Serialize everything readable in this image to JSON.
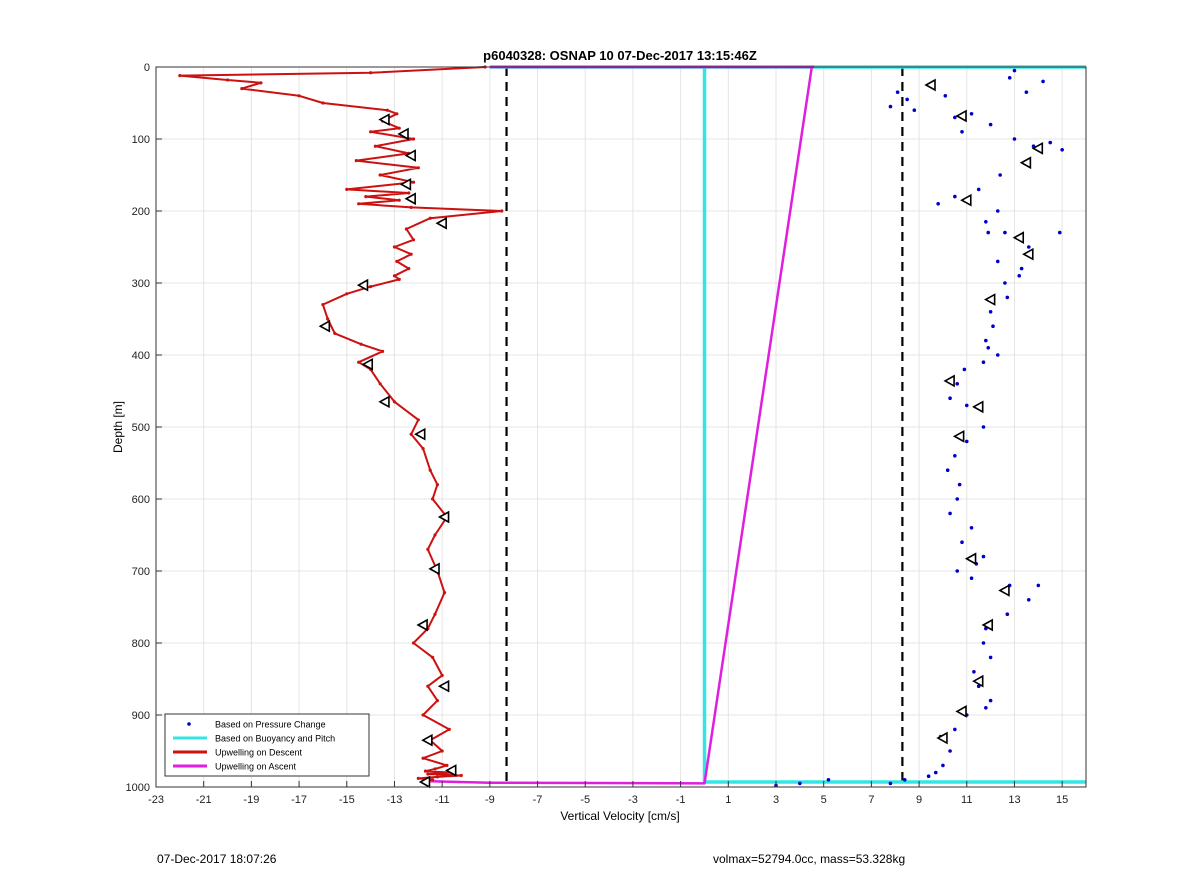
{
  "chart_data": {
    "type": "scatter",
    "title": "p6040328: OSNAP 10 07-Dec-2017 13:15:46Z",
    "xlabel": "Vertical Velocity [cm/s]",
    "ylabel": "Depth [m]",
    "xlim": [
      -23,
      16
    ],
    "ylim": [
      0,
      1000
    ],
    "y_reversed": true,
    "grid": true,
    "xticks": [
      -23,
      -21,
      -19,
      -17,
      -15,
      -13,
      -11,
      -9,
      -7,
      -5,
      -3,
      -1,
      1,
      3,
      5,
      7,
      9,
      11,
      13,
      15
    ],
    "yticks": [
      0,
      100,
      200,
      300,
      400,
      500,
      600,
      700,
      800,
      900,
      1000
    ],
    "legend_position": "bottom-left",
    "threshold_lines": [
      -8.3,
      8.3
    ],
    "series": [
      {
        "name": "Based on Pressure Change",
        "mark": "dots",
        "color": "#0000cc",
        "x": [
          13.0,
          12.8,
          14.2,
          13.5,
          8.1,
          8.5,
          7.8,
          8.8,
          10.1,
          10.5,
          11.2,
          10.8,
          12.0,
          13.0,
          13.8,
          14.5,
          15.0,
          13.6,
          12.4,
          11.5,
          10.5,
          9.8,
          12.3,
          11.8,
          11.9,
          12.6,
          13.6,
          14.9,
          12.3,
          13.3,
          12.6,
          13.2,
          12.7,
          12.0,
          12.1,
          11.8,
          12.3,
          11.7,
          11.9,
          10.9,
          10.6,
          10.3,
          11.0,
          11.7,
          11.0,
          10.5,
          10.2,
          10.7,
          10.6,
          10.3,
          11.2,
          10.8,
          11.7,
          11.4,
          10.6,
          11.2,
          12.8,
          13.6,
          14.0,
          12.7,
          11.8,
          11.7,
          12.0,
          11.3,
          11.5,
          12.0,
          11.8,
          11.0,
          10.5,
          9.9,
          10.3,
          10.0,
          9.7,
          9.4,
          4.0,
          5.2,
          7.8,
          8.4,
          3.0
        ],
        "y": [
          5,
          15,
          20,
          35,
          35,
          45,
          55,
          60,
          40,
          70,
          65,
          90,
          80,
          100,
          110,
          105,
          115,
          130,
          150,
          170,
          180,
          190,
          200,
          215,
          230,
          230,
          250,
          230,
          270,
          280,
          300,
          290,
          320,
          340,
          360,
          380,
          400,
          410,
          390,
          420,
          440,
          460,
          470,
          500,
          520,
          540,
          560,
          580,
          600,
          620,
          640,
          660,
          680,
          690,
          700,
          710,
          720,
          740,
          720,
          760,
          780,
          800,
          820,
          840,
          860,
          880,
          890,
          900,
          920,
          930,
          950,
          970,
          980,
          985,
          995,
          990,
          995,
          990,
          998
        ]
      },
      {
        "name": "Based on Buoyancy and Pitch",
        "mark": "line",
        "color": "#33e6e6",
        "x": [
          0,
          0,
          0,
          0,
          0,
          0,
          0,
          0,
          0,
          0,
          0,
          0,
          16
        ],
        "y": [
          0,
          100,
          200,
          300,
          400,
          500,
          600,
          700,
          800,
          900,
          993,
          993,
          993
        ],
        "extra_x": [
          -9,
          16
        ],
        "extra_y": [
          0,
          0
        ]
      },
      {
        "name": "Upwelling on Descent",
        "mark": "line",
        "color": "#cc1111",
        "x": [
          -9.2,
          -14,
          -22,
          -20,
          -18.6,
          -19.4,
          -17,
          -16,
          -13.3,
          -12.9,
          -13.5,
          -12.8,
          -14,
          -12.2,
          -13.8,
          -12.4,
          -14.6,
          -12.0,
          -13.6,
          -12.2,
          -15.0,
          -12.4,
          -14.2,
          -12.8,
          -14.5,
          -12.3,
          -8.5,
          -11.5,
          -12.5,
          -12.2,
          -13.0,
          -12.3,
          -12.9,
          -12.4,
          -13.0,
          -12.8,
          -14.0,
          -15.0,
          -16.0,
          -15.8,
          -15.5,
          -14.4,
          -13.5,
          -14.5,
          -14.0,
          -13.6,
          -13.0,
          -12.0,
          -12.3,
          -11.8,
          -11.5,
          -11.2,
          -11.4,
          -10.8,
          -11.3,
          -11.6,
          -11.2,
          -10.9,
          -11.3,
          -11.6,
          -12.2,
          -11.4,
          -11.0,
          -11.6,
          -11.2,
          -11.8,
          -10.7,
          -11.5,
          -11.0,
          -11.8,
          -10.8,
          -11.3,
          -11.7,
          -10.6,
          -11.6,
          -10.2,
          -11.2,
          -12.0,
          -11.4,
          -11.8
        ],
        "y": [
          0,
          8,
          12,
          18,
          22,
          30,
          40,
          50,
          60,
          65,
          75,
          85,
          90,
          100,
          110,
          120,
          130,
          140,
          150,
          160,
          170,
          175,
          180,
          185,
          190,
          195,
          200,
          210,
          225,
          240,
          250,
          260,
          270,
          280,
          290,
          295,
          305,
          315,
          330,
          350,
          370,
          385,
          395,
          410,
          420,
          440,
          465,
          490,
          510,
          530,
          560,
          580,
          600,
          625,
          650,
          670,
          700,
          730,
          760,
          780,
          800,
          820,
          845,
          860,
          880,
          900,
          920,
          935,
          950,
          960,
          970,
          975,
          978,
          980,
          982,
          984,
          986,
          988,
          990,
          992
        ]
      },
      {
        "name": "Upwelling on Ascent",
        "mark": "line",
        "color": "#e01ee0",
        "x": [
          -11.5,
          -9.0,
          0,
          4.5,
          4.6
        ],
        "y": [
          992,
          994,
          995,
          0,
          0
        ],
        "extra_x": [
          -9,
          4.5
        ],
        "extra_y": [
          0,
          0
        ]
      }
    ],
    "markers": {
      "x": [
        9.5,
        10.8,
        14.0,
        13.5,
        11.0,
        13.2,
        13.6,
        12.0,
        10.3,
        11.5,
        10.7,
        11.2,
        12.6,
        11.9,
        11.5,
        10.8,
        10.0,
        -13.4,
        -12.6,
        -12.3,
        -12.5,
        -12.3,
        -11.0,
        -14.3,
        -15.9,
        -14.1,
        -13.4,
        -11.9,
        -10.9,
        -11.3,
        -11.8,
        -10.9,
        -11.6,
        -10.6,
        -11.7
      ],
      "y": [
        25,
        68,
        113,
        133,
        185,
        237,
        260,
        323,
        436,
        472,
        513,
        683,
        727,
        775,
        853,
        895,
        932,
        73,
        93,
        123,
        163,
        183,
        217,
        303,
        360,
        413,
        465,
        510,
        625,
        697,
        775,
        860,
        935,
        977,
        993
      ]
    },
    "footer_left": "07-Dec-2017 18:07:26",
    "footer_right": "volmax=52794.0cc, mass=53.328kg"
  }
}
